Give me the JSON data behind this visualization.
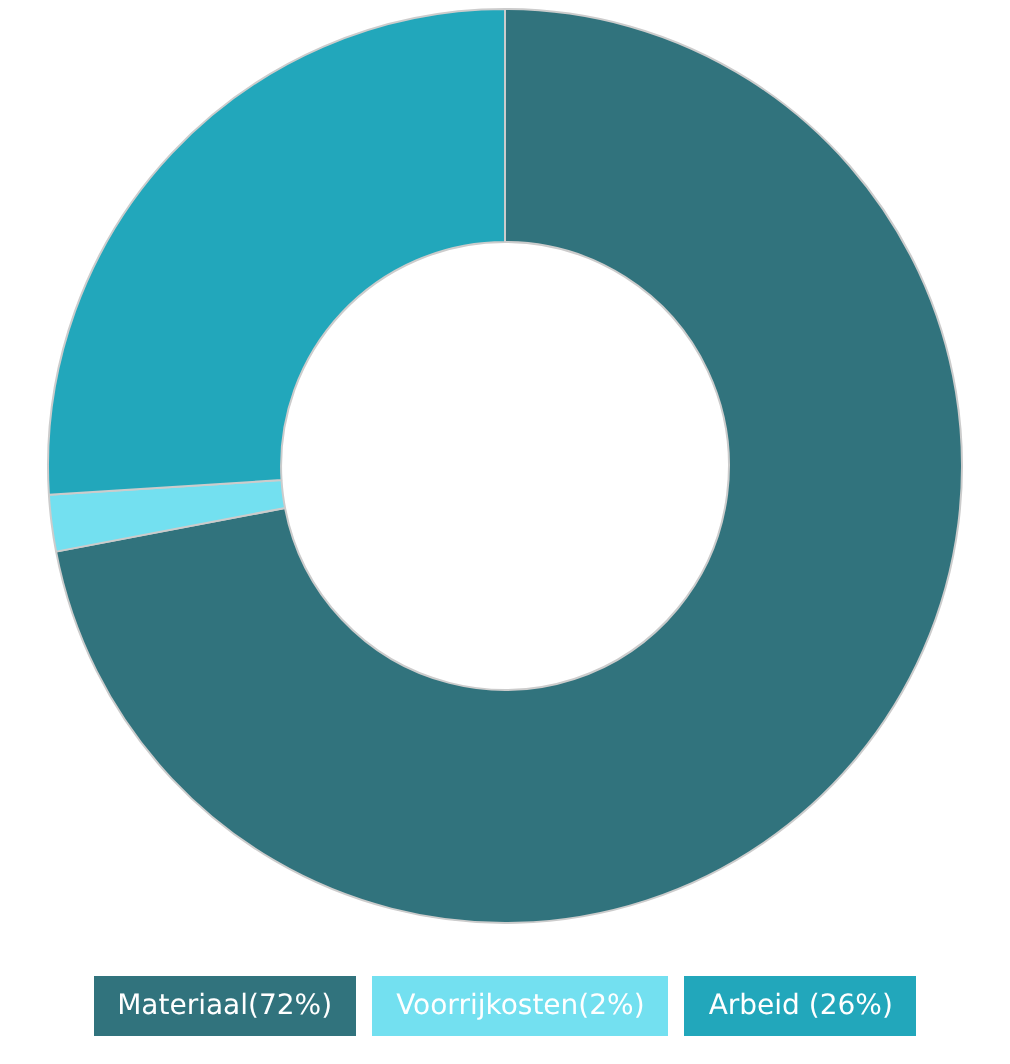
{
  "chart_data": {
    "type": "donut",
    "categories": [
      "Materiaal(72%)",
      "Voorrijkosten(2%)",
      "Arbeid (26%)"
    ],
    "values": [
      72,
      2,
      26
    ],
    "colors": [
      "#31737d",
      "#73e0f0",
      "#22a7bb"
    ],
    "legend": "bottom"
  }
}
